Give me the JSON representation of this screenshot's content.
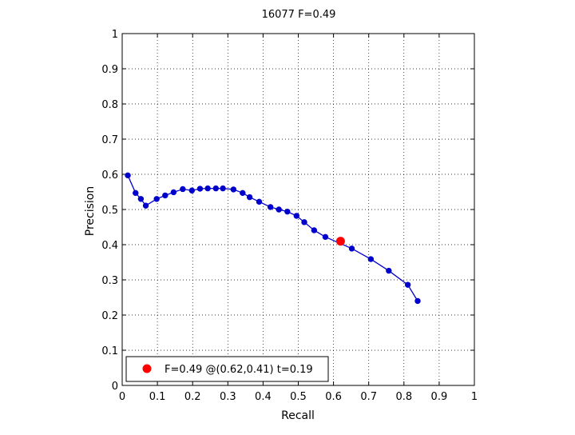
{
  "figure": {
    "background": "#ffffff"
  },
  "chart_data": {
    "type": "line",
    "title": "16077 F=0.49",
    "xlabel": "Recall",
    "ylabel": "Precision",
    "xlim": [
      0,
      1
    ],
    "ylim": [
      0,
      1
    ],
    "xticks": [
      "0",
      "0.1",
      "0.2",
      "0.3",
      "0.4",
      "0.5",
      "0.6",
      "0.7",
      "0.8",
      "0.9",
      "1"
    ],
    "yticks": [
      "0",
      "0.1",
      "0.2",
      "0.3",
      "0.4",
      "0.5",
      "0.6",
      "0.7",
      "0.8",
      "0.9",
      "1"
    ],
    "grid": true,
    "grid_style": "dotted",
    "series": [
      {
        "color": "#0000cc",
        "marker": "circle",
        "points": [
          [
            0.016,
            0.597
          ],
          [
            0.038,
            0.547
          ],
          [
            0.053,
            0.53
          ],
          [
            0.067,
            0.511
          ],
          [
            0.098,
            0.53
          ],
          [
            0.122,
            0.54
          ],
          [
            0.146,
            0.549
          ],
          [
            0.172,
            0.558
          ],
          [
            0.198,
            0.554
          ],
          [
            0.221,
            0.559
          ],
          [
            0.243,
            0.56
          ],
          [
            0.266,
            0.56
          ],
          [
            0.286,
            0.56
          ],
          [
            0.316,
            0.557
          ],
          [
            0.342,
            0.547
          ],
          [
            0.362,
            0.535
          ],
          [
            0.389,
            0.522
          ],
          [
            0.421,
            0.507
          ],
          [
            0.445,
            0.5
          ],
          [
            0.469,
            0.494
          ],
          [
            0.495,
            0.482
          ],
          [
            0.517,
            0.464
          ],
          [
            0.545,
            0.441
          ],
          [
            0.577,
            0.422
          ],
          [
            0.652,
            0.389
          ],
          [
            0.706,
            0.359
          ],
          [
            0.757,
            0.326
          ],
          [
            0.811,
            0.286
          ],
          [
            0.839,
            0.24
          ]
        ]
      }
    ],
    "highlight": {
      "x": 0.62,
      "y": 0.41,
      "color": "#ff0000",
      "label": "F=0.49 @(0.62,0.41) t=0.19"
    },
    "legend": {
      "placement": "bottom-left",
      "entries": [
        "F=0.49 @(0.62,0.41) t=0.19"
      ]
    }
  }
}
